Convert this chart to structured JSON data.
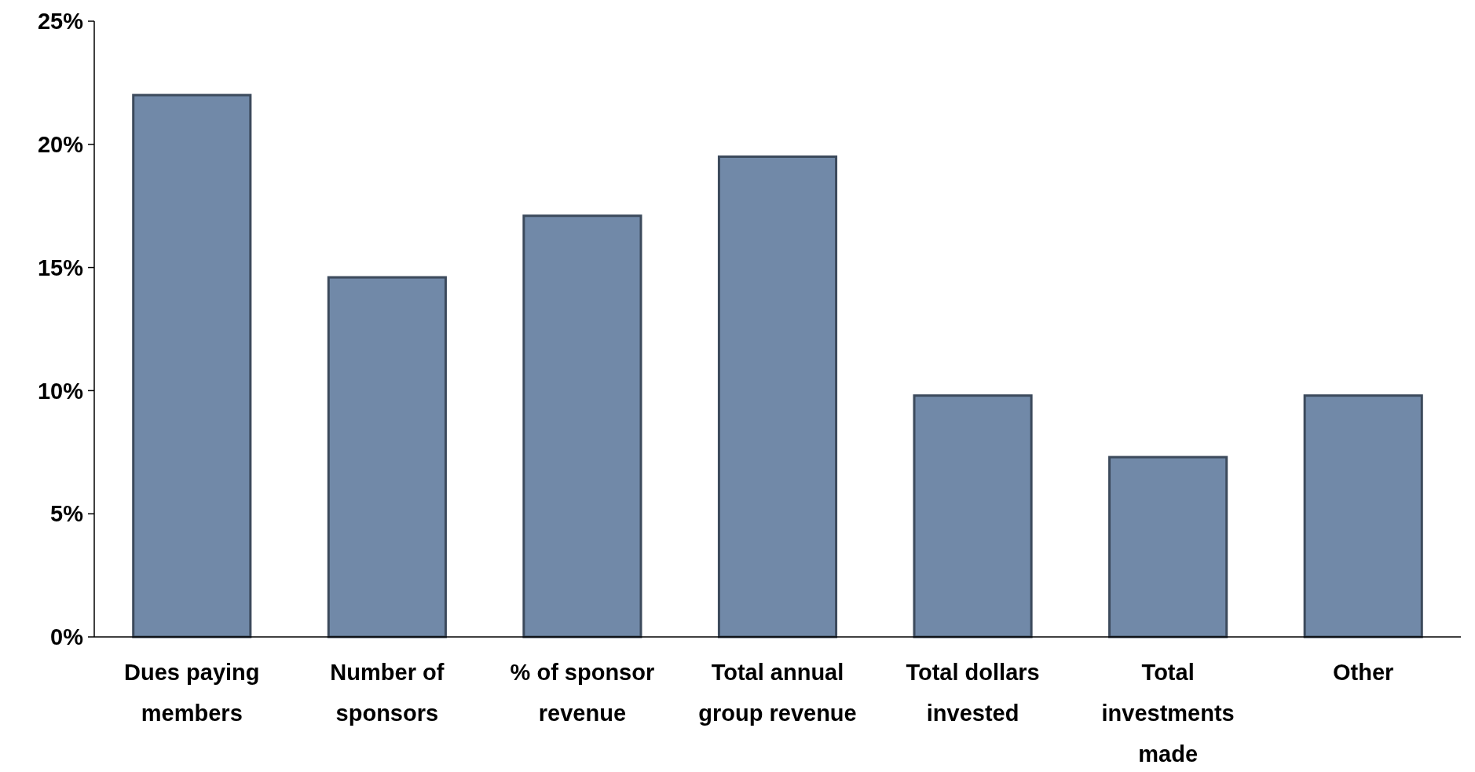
{
  "chart_data": {
    "type": "bar",
    "categories": [
      "Dues paying members",
      "Number of sponsors",
      "% of sponsor revenue",
      "Total annual group revenue",
      "Total dollars invested",
      "Total investments made",
      "Other"
    ],
    "values": [
      22,
      14.6,
      17.1,
      19.5,
      9.8,
      7.3,
      9.8
    ],
    "color": "#7189a8",
    "ylim": [
      0,
      25
    ],
    "yticks": [
      {
        "value": 0,
        "label": "0%"
      },
      {
        "value": 5,
        "label": "5%"
      },
      {
        "value": 10,
        "label": "10%"
      },
      {
        "value": 15,
        "label": "15%"
      },
      {
        "value": 20,
        "label": "20%"
      },
      {
        "value": 25,
        "label": "25%"
      }
    ]
  }
}
